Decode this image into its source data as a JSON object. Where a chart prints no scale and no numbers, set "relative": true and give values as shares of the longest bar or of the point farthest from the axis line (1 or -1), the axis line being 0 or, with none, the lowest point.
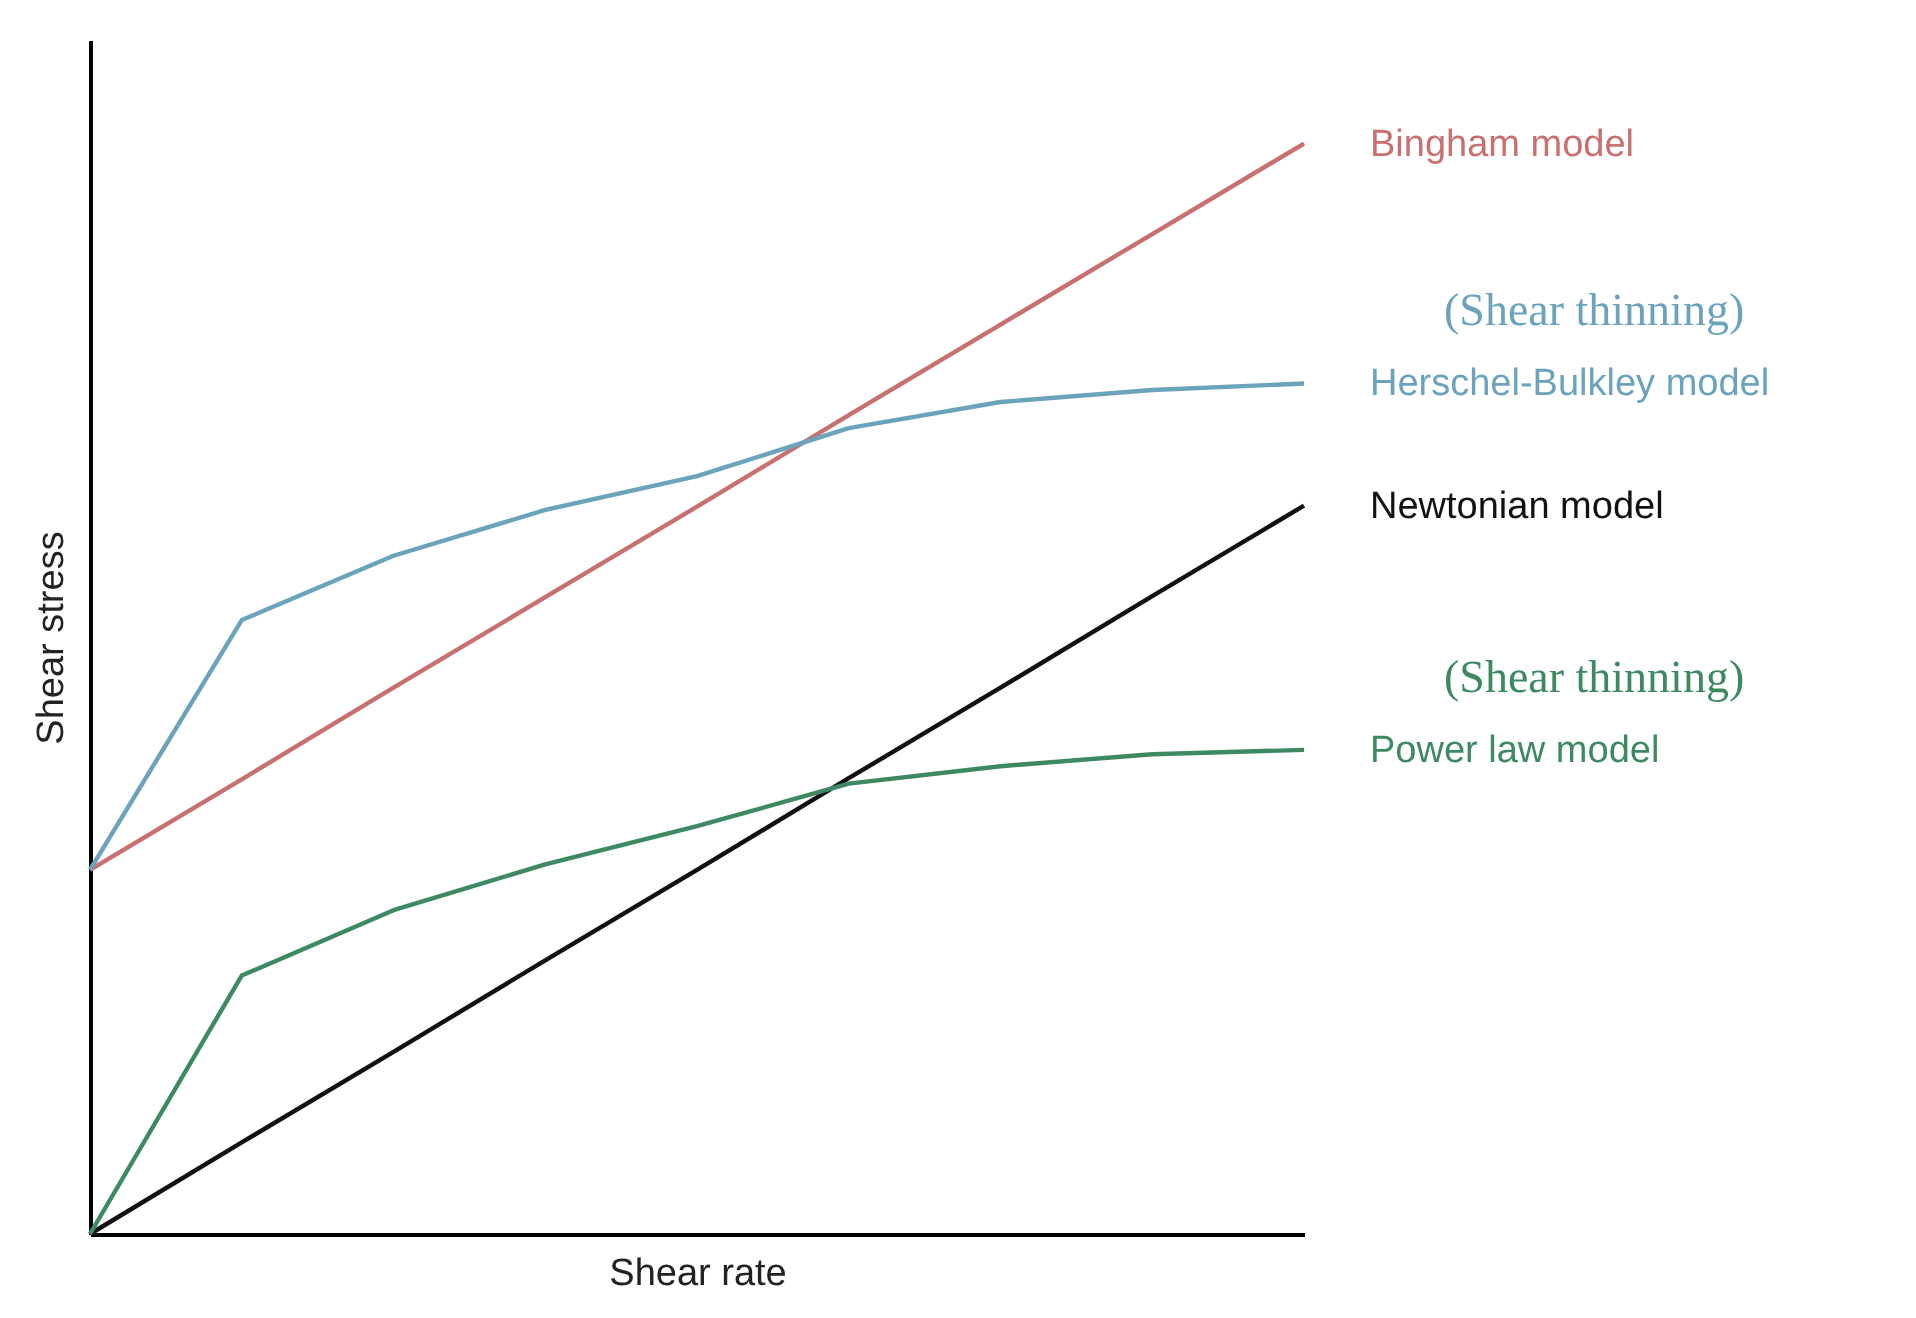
{
  "chart_data": {
    "type": "line",
    "relative": true,
    "xlabel": "Shear rate",
    "ylabel": "Shear stress",
    "categories": [
      null,
      null,
      null,
      null,
      null,
      null,
      null,
      null,
      null
    ],
    "series": [
      {
        "name": "Bingham model",
        "color": "#c87070",
        "values": [
          0.334,
          0.417,
          0.501,
          0.584,
          0.667,
          0.751,
          0.834,
          0.917,
          1.0
        ]
      },
      {
        "name": "Herschel-Bulkley model",
        "color": "#6aa3bb",
        "values": [
          0.334,
          0.563,
          0.622,
          0.664,
          0.695,
          0.739,
          0.763,
          0.774,
          0.78
        ]
      },
      {
        "name": "Newtonian model",
        "color": "#111111",
        "values": [
          0,
          0.084,
          0.167,
          0.251,
          0.334,
          0.418,
          0.501,
          0.585,
          0.668
        ]
      },
      {
        "name": "Power law model",
        "color": "#3d8a62",
        "values": [
          0,
          0.237,
          0.297,
          0.339,
          0.374,
          0.413,
          0.429,
          0.44,
          0.444
        ]
      }
    ],
    "annotations": [
      "(Shear thinning)",
      "(Shear thinning)"
    ]
  }
}
